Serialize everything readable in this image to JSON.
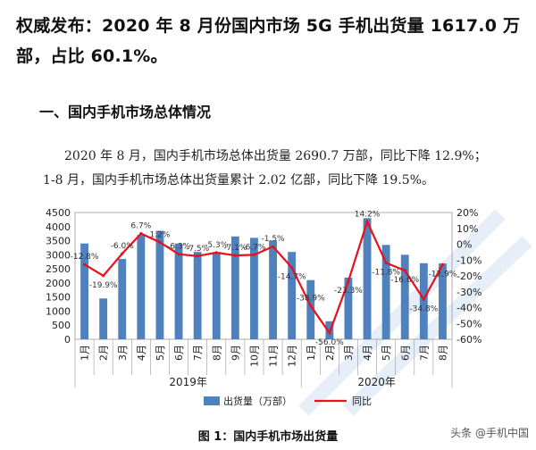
{
  "headline": "权威发布：2020 年 8 月份国内市场 5G 手机出货量 1617.0 万部，占比 60.1%。",
  "section_title": "一、国内手机市场总体情况",
  "paragraph": {
    "line1": "2020 年 8 月，国内手机市场总体出货量 2690.7 万部，同比下降 12.9%；",
    "line2": "1-8 月，国内手机市场总体出货量累计 2.02 亿部，同比下降 19.5%。"
  },
  "caption": "图 1：国内手机市场出货量",
  "watermark": "头条 @手机中国",
  "colors": {
    "bar": "#4F81BD",
    "line": "#E8101A"
  },
  "chart_data": {
    "type": "bar",
    "categories": [
      "1月",
      "2月",
      "3月",
      "4月",
      "5月",
      "6月",
      "7月",
      "8月",
      "9月",
      "10月",
      "11月",
      "12月",
      "1月",
      "2月",
      "3月",
      "4月",
      "5月",
      "6月",
      "7月",
      "8月"
    ],
    "groups": [
      {
        "label": "2019年",
        "count": 12
      },
      {
        "label": "2020年",
        "count": 8
      }
    ],
    "series": [
      {
        "name": "出货量（万部）",
        "type": "bar",
        "axis": "left",
        "values": [
          3400,
          1450,
          2850,
          3700,
          3850,
          3400,
          3100,
          3050,
          3650,
          3600,
          3500,
          3100,
          2100,
          640,
          2190,
          4300,
          3350,
          3000,
          2700,
          2690
        ]
      },
      {
        "name": "同比",
        "type": "line",
        "axis": "right",
        "values": [
          -12.8,
          -19.9,
          -6.0,
          6.7,
          1.2,
          -6.3,
          -7.5,
          -5.3,
          -7.1,
          -6.7,
          -1.5,
          -14.7,
          -38.9,
          -56.0,
          -23.3,
          14.2,
          -11.8,
          -16.6,
          -34.8,
          -12.9
        ],
        "labels": [
          "-12.8%",
          "-19.9%",
          "-6.0%",
          "6.7%",
          "1.2%",
          "-6.3%",
          "-7.5%",
          "-5.3%",
          "-7.1%",
          "-6.7%",
          "-1.5%",
          "-14.7%",
          "-38.9%",
          "-56.0%",
          "-23.3%",
          "14.2%",
          "-11.8%",
          "-16.6%",
          "-34.8%",
          "-12.9%"
        ]
      }
    ],
    "y_left": {
      "min": 0,
      "max": 4500,
      "ticks": [
        "0",
        "500",
        "1000",
        "1500",
        "2000",
        "2500",
        "3000",
        "3500",
        "4000",
        "4500"
      ]
    },
    "y_right": {
      "min": -60,
      "max": 20,
      "ticks": [
        "-60%",
        "-50%",
        "-40%",
        "-30%",
        "-20%",
        "-10%",
        "0%",
        "10%",
        "20%"
      ]
    },
    "legend_position": "bottom",
    "grid": false
  }
}
